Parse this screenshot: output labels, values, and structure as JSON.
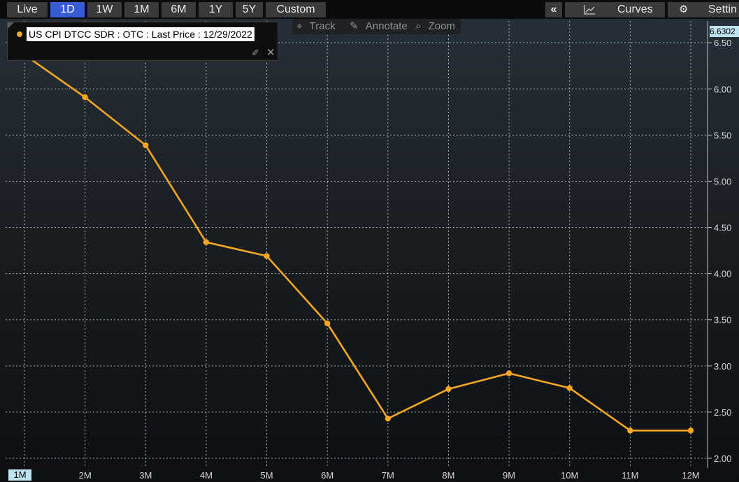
{
  "toolbar": {
    "ranges": [
      "Live",
      "1D",
      "1W",
      "1M",
      "6M",
      "1Y",
      "5Y",
      "Custom"
    ],
    "active_range": "1D",
    "collapse_label": "«",
    "curves_label": "Curves",
    "settings_label": "Settin"
  },
  "tools": {
    "track_label": "Track",
    "annotate_label": "Annotate",
    "zoom_label": "Zoom"
  },
  "legend": {
    "label": "US CPI DTCC SDR : OTC : Last Price : 12/29/2022",
    "series_color": "#f5a623"
  },
  "last_value_tag": "6.6302",
  "chart_data": {
    "type": "line",
    "title": "",
    "xlabel": "",
    "ylabel": "",
    "categories": [
      "1M",
      "2M",
      "3M",
      "4M",
      "5M",
      "6M",
      "7M",
      "8M",
      "9M",
      "10M",
      "11M",
      "12M"
    ],
    "series": [
      {
        "name": "US CPI DTCC SDR : OTC : Last Price : 12/29/2022",
        "values": [
          6.37,
          5.91,
          5.39,
          4.34,
          4.19,
          3.46,
          2.43,
          2.75,
          2.92,
          2.76,
          2.3,
          2.3
        ]
      }
    ],
    "ylim": [
      2.0,
      6.63
    ],
    "yticks": [
      "2.00",
      "2.50",
      "3.00",
      "3.50",
      "4.00",
      "4.50",
      "5.00",
      "5.50",
      "6.00",
      "6.50"
    ],
    "selected_category": "1M",
    "grid": true,
    "legend_position": "top-left"
  }
}
